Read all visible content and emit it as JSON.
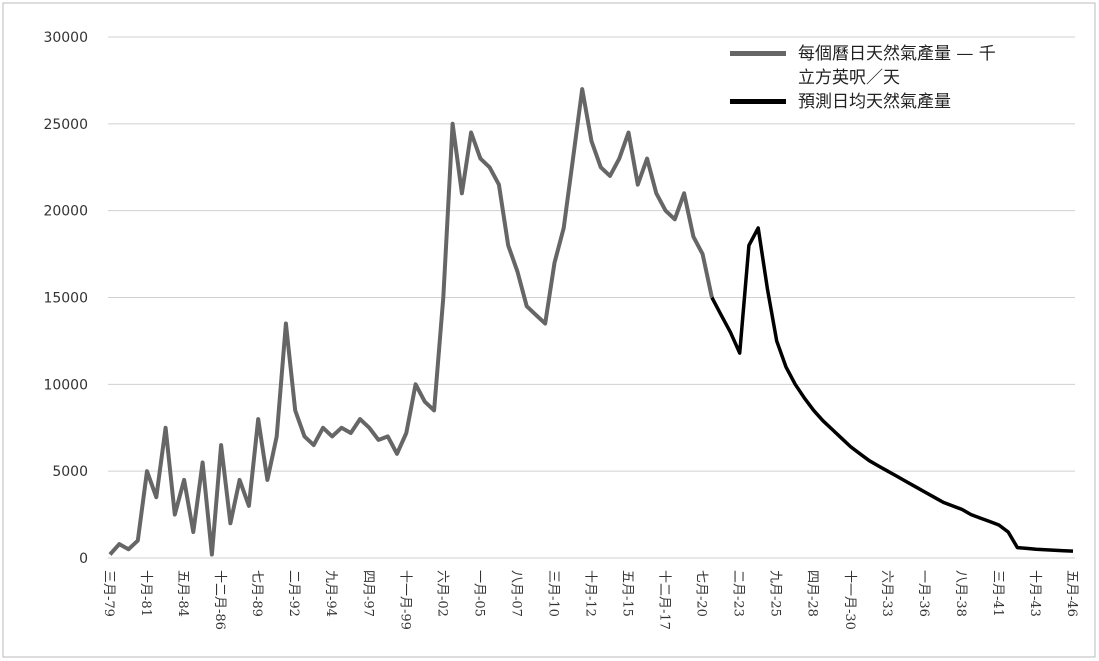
{
  "chart_data": {
    "type": "line",
    "categories": [
      "三月-79",
      null,
      null,
      null,
      "十月-81",
      null,
      null,
      null,
      "五月-84",
      null,
      null,
      null,
      "十二月-86",
      null,
      null,
      null,
      "七月-89",
      null,
      null,
      null,
      "二月-92",
      null,
      null,
      null,
      "九月-94",
      null,
      null,
      null,
      "四月-97",
      null,
      null,
      null,
      "十一月-99",
      null,
      null,
      null,
      "六月-02",
      null,
      null,
      null,
      "一月-05",
      null,
      null,
      null,
      "八月-07",
      null,
      null,
      null,
      "三月-10",
      null,
      null,
      null,
      "十月-12",
      null,
      null,
      null,
      "五月-15",
      null,
      null,
      null,
      "十二月-17",
      null,
      null,
      null,
      "七月-20",
      null,
      null,
      null,
      "二月-23",
      null,
      null,
      null,
      "九月-25",
      null,
      null,
      null,
      "四月-28",
      null,
      null,
      null,
      "十一月-30",
      null,
      null,
      null,
      "六月-33",
      null,
      null,
      null,
      "一月-36",
      null,
      null,
      null,
      "八月-38",
      null,
      null,
      null,
      "三月-41",
      null,
      null,
      null,
      "十月-43",
      null,
      null,
      null,
      "五月-46"
    ],
    "series": [
      {
        "name": "每個曆日天然氣產量 — 千立方英呎／天",
        "color": "#666666",
        "values": [
          200,
          800,
          500,
          1000,
          5000,
          3500,
          7500,
          2500,
          4500,
          1500,
          5500,
          200,
          6500,
          2000,
          4500,
          3000,
          8000,
          4500,
          7000,
          13500,
          8500,
          7000,
          6500,
          7500,
          7000,
          7500,
          7200,
          8000,
          7500,
          6800,
          7000,
          6000,
          7200,
          10000,
          9000,
          8500,
          15000,
          25000,
          21000,
          24500,
          23000,
          22500,
          21500,
          18000,
          16500,
          14500,
          14000,
          13500,
          17000,
          19000,
          23000,
          27000,
          24000,
          22500,
          22000,
          23000,
          24500,
          21500,
          23000,
          21000,
          20000,
          19500,
          21000,
          18500,
          17500,
          15000,
          null,
          null,
          null,
          null,
          null,
          null,
          null,
          null,
          null,
          null,
          null,
          null,
          null,
          null,
          null,
          null,
          null,
          null,
          null,
          null,
          null,
          null,
          null,
          null,
          null,
          null,
          null,
          null,
          null,
          null,
          null,
          null,
          null,
          null,
          null,
          null,
          null,
          null,
          null
        ]
      },
      {
        "name": "預測日均天然氣產量",
        "color": "#000000",
        "values": [
          null,
          null,
          null,
          null,
          null,
          null,
          null,
          null,
          null,
          null,
          null,
          null,
          null,
          null,
          null,
          null,
          null,
          null,
          null,
          null,
          null,
          null,
          null,
          null,
          null,
          null,
          null,
          null,
          null,
          null,
          null,
          null,
          null,
          null,
          null,
          null,
          null,
          null,
          null,
          null,
          null,
          null,
          null,
          null,
          null,
          null,
          null,
          null,
          null,
          null,
          null,
          null,
          null,
          null,
          null,
          null,
          null,
          null,
          null,
          null,
          null,
          null,
          null,
          null,
          null,
          15000,
          14000,
          13000,
          11800,
          18000,
          19000,
          15500,
          12500,
          11000,
          10000,
          9200,
          8500,
          7900,
          7400,
          6900,
          6400,
          6000,
          5600,
          5300,
          5000,
          4700,
          4400,
          4100,
          3800,
          3500,
          3200,
          3000,
          2800,
          2500,
          2300,
          2100,
          1900,
          1500,
          600,
          550,
          500,
          480,
          450,
          420,
          400
        ]
      }
    ],
    "ylim": [
      0,
      30000
    ],
    "yticks": [
      0,
      5000,
      10000,
      15000,
      20000,
      25000,
      30000
    ],
    "grid": true
  }
}
